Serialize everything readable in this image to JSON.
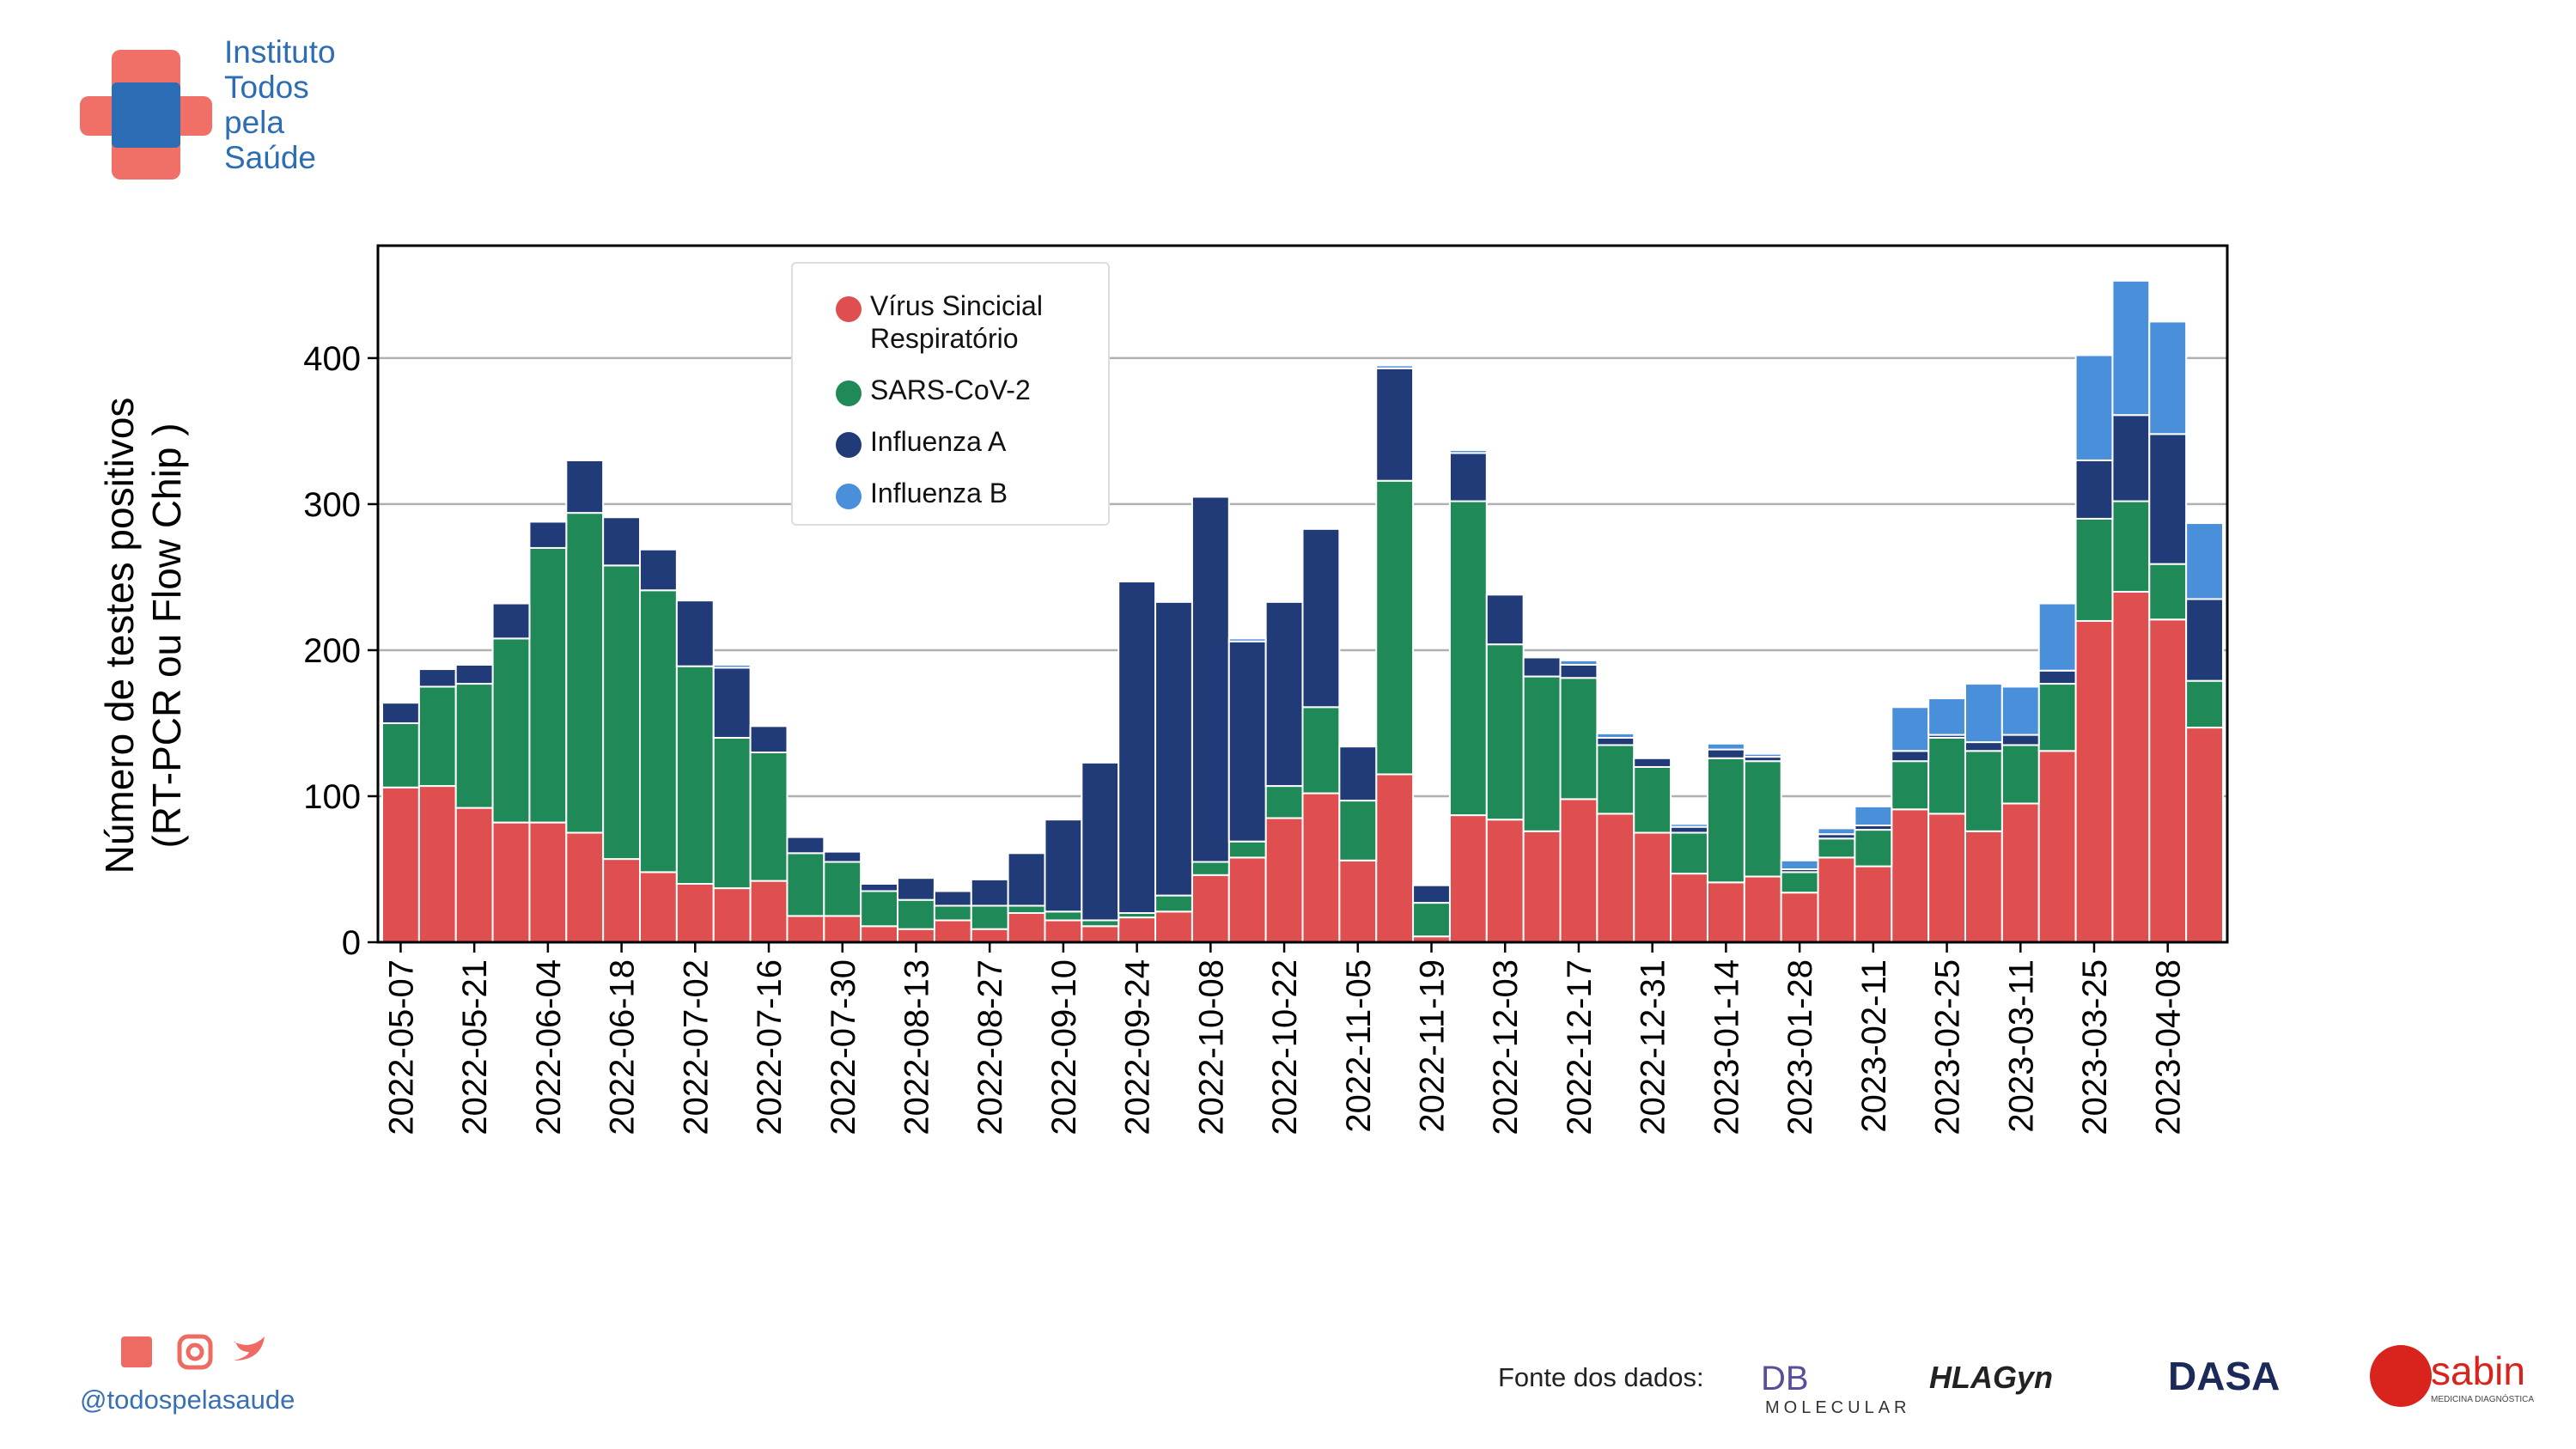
{
  "chart_data": {
    "type": "stacked_bar",
    "ylabel": [
      "Número de testes positivos",
      "(RT-PCR ou Flow Chip )"
    ],
    "categories": [
      "2022-05-07",
      null,
      "2022-05-21",
      null,
      "2022-06-04",
      null,
      "2022-06-18",
      null,
      "2022-07-02",
      null,
      "2022-07-16",
      null,
      "2022-07-30",
      null,
      "2022-08-13",
      null,
      "2022-08-27",
      null,
      "2022-09-10",
      null,
      "2022-09-24",
      null,
      "2022-10-08",
      null,
      "2022-10-22",
      null,
      "2022-11-05",
      null,
      "2022-11-19",
      null,
      "2022-12-03",
      null,
      "2022-12-17",
      null,
      "2022-12-31",
      null,
      "2023-01-14",
      null,
      "2023-01-28",
      null,
      "2023-02-11",
      null,
      "2023-02-25",
      null,
      "2023-03-11",
      null,
      "2023-03-25",
      null,
      "2023-04-08",
      null
    ],
    "series": [
      {
        "name": "Vírus Sincicial Respiratório",
        "color": "#df4f4f",
        "values": [
          106,
          107,
          92,
          82,
          82,
          75,
          57,
          48,
          40,
          37,
          42,
          18,
          18,
          11,
          9,
          15,
          9,
          20,
          15,
          11,
          17,
          21,
          46,
          58,
          85,
          102,
          56,
          115,
          4,
          87,
          84,
          76,
          98,
          88,
          75,
          47,
          41,
          45,
          34,
          58,
          52,
          91,
          88,
          76,
          95,
          131,
          220,
          240,
          221,
          147
        ]
      },
      {
        "name": "SARS-CoV-2",
        "color": "#1f8a57",
        "values": [
          44,
          68,
          85,
          126,
          188,
          219,
          201,
          193,
          149,
          103,
          88,
          43,
          37,
          24,
          20,
          10,
          16,
          5,
          6,
          4,
          3,
          11,
          9,
          11,
          22,
          59,
          41,
          201,
          23,
          215,
          120,
          106,
          83,
          47,
          45,
          28,
          85,
          79,
          14,
          13,
          25,
          33,
          52,
          55,
          40,
          46,
          70,
          62,
          38,
          32
        ]
      },
      {
        "name": "Influenza A",
        "color": "#213b78",
        "values": [
          14,
          12,
          13,
          24,
          18,
          36,
          33,
          28,
          45,
          48,
          18,
          11,
          7,
          5,
          15,
          10,
          18,
          36,
          63,
          108,
          227,
          201,
          250,
          137,
          126,
          122,
          37,
          77,
          12,
          33,
          34,
          13,
          9,
          5,
          6,
          4,
          6,
          3,
          2,
          3,
          3,
          7,
          2,
          6,
          7,
          9,
          40,
          59,
          89,
          56
        ]
      },
      {
        "name": "Influenza B",
        "color": "#4a8fda",
        "values": [
          0,
          0,
          0,
          0,
          1,
          1,
          0,
          1,
          0,
          2,
          0,
          0,
          0,
          0,
          0,
          0,
          0,
          0,
          0,
          0,
          0,
          0,
          0,
          2,
          0,
          0,
          0,
          2,
          0,
          2,
          0,
          0,
          3,
          3,
          0,
          2,
          4,
          2,
          6,
          4,
          13,
          30,
          25,
          40,
          33,
          46,
          72,
          92,
          77,
          52
        ]
      }
    ],
    "ylim": [
      0,
      477
    ],
    "yticks": [
      0,
      100,
      200,
      300,
      400
    ],
    "grid": true,
    "legend": "upper left"
  },
  "logo": {
    "lines": [
      "Instituto",
      "Todos",
      "pela",
      "Saúde"
    ]
  },
  "footer": {
    "handle": "@todospelasaude",
    "source": "Fonte dos dados:",
    "partners": [
      "DB",
      "MOLECULAR",
      "HLAGyn",
      "DASA",
      "sabin",
      "MEDICINA DIAGNÓSTICA"
    ]
  }
}
